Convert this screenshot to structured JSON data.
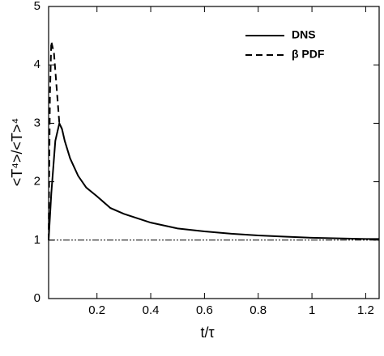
{
  "chart_data": {
    "type": "line",
    "xlabel": "t/τ",
    "ylabel": "<T⁴>/<T>⁴",
    "xlim": [
      0.02,
      1.25
    ],
    "ylim": [
      0,
      5
    ],
    "xticks": [
      0.2,
      0.4,
      0.6,
      0.8,
      1,
      1.2
    ],
    "yticks": [
      0,
      1,
      2,
      3,
      4,
      5
    ],
    "grid": false,
    "legend": "upper right",
    "hline": 1,
    "series": [
      {
        "name": "DNS",
        "color": "#000000",
        "dash": "solid",
        "x": [
          0.02,
          0.03,
          0.045,
          0.06,
          0.07,
          0.08,
          0.1,
          0.13,
          0.16,
          0.2,
          0.25,
          0.3,
          0.4,
          0.5,
          0.6,
          0.7,
          0.8,
          0.9,
          1.0,
          1.1,
          1.2,
          1.25
        ],
        "values": [
          1.0,
          1.8,
          2.7,
          3.0,
          2.9,
          2.7,
          2.4,
          2.1,
          1.9,
          1.75,
          1.55,
          1.45,
          1.3,
          1.2,
          1.15,
          1.11,
          1.08,
          1.06,
          1.04,
          1.03,
          1.02,
          1.02
        ]
      },
      {
        "name": "β PDF",
        "color": "#000000",
        "dash": "dashed",
        "x": [
          0.02,
          0.025,
          0.03,
          0.04,
          0.05,
          0.06,
          0.07
        ],
        "values": [
          1.0,
          3.5,
          4.4,
          4.2,
          3.6,
          3.0,
          2.9
        ]
      }
    ]
  }
}
